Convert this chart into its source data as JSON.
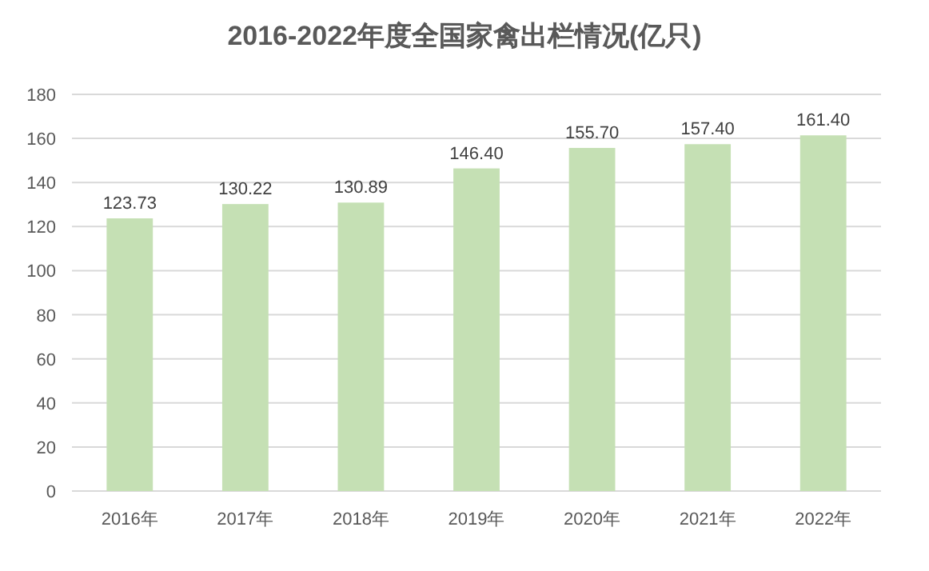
{
  "chart_data": {
    "type": "bar",
    "title": "2016-2022年度全国家禽出栏情况(亿只)",
    "categories": [
      "2016年",
      "2017年",
      "2018年",
      "2019年",
      "2020年",
      "2021年",
      "2022年"
    ],
    "values": [
      123.73,
      130.22,
      130.89,
      146.4,
      155.7,
      157.4,
      161.4
    ],
    "value_labels": [
      "123.73",
      "130.22",
      "130.89",
      "146.40",
      "155.70",
      "157.40",
      "161.40"
    ],
    "color": "#c5e0b4",
    "ylim": [
      0,
      180
    ],
    "yticks": [
      0,
      20,
      40,
      60,
      80,
      100,
      120,
      140,
      160,
      180
    ],
    "grid": "y"
  }
}
